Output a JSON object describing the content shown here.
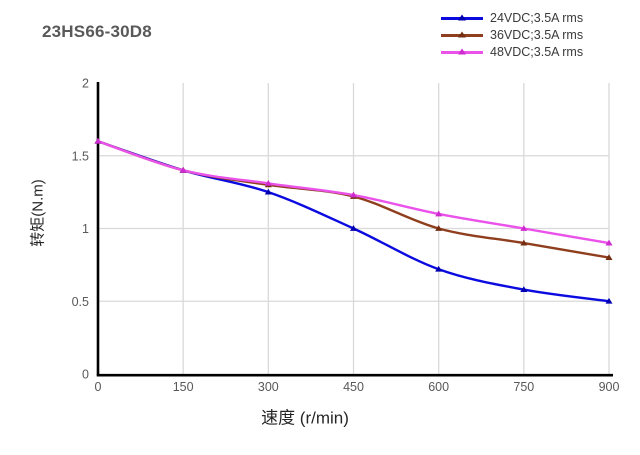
{
  "chart_data": {
    "type": "line",
    "title": "23HS66-30D8",
    "xlabel": "速度 (r/min)",
    "ylabel": "转矩(N.m)",
    "x": [
      0,
      150,
      300,
      450,
      600,
      750,
      900
    ],
    "xticks": [
      "0",
      "150",
      "300",
      "450",
      "600",
      "750",
      "900"
    ],
    "xtick_values": [
      0,
      150,
      300,
      450,
      600,
      750,
      900
    ],
    "yticks": [
      "0",
      "0.5",
      "1",
      "1.5",
      "2"
    ],
    "ytick_values": [
      0,
      0.5,
      1,
      1.5,
      2
    ],
    "xlim": [
      0,
      900
    ],
    "ylim": [
      0,
      2
    ],
    "grid": true,
    "legend_position": "top-right",
    "series": [
      {
        "name": "24VDC;3.5A rms",
        "color": "#0b0be0",
        "marker_color": "#0000ae",
        "values": [
          1.6,
          1.4,
          1.25,
          1.0,
          0.72,
          0.58,
          0.5
        ]
      },
      {
        "name": "36VDC;3.5A rms",
        "color": "#8f3f1e",
        "marker_color": "#742f12",
        "values": [
          1.6,
          1.4,
          1.3,
          1.22,
          1.0,
          0.9,
          0.8
        ]
      },
      {
        "name": "48VDC;3.5A rms",
        "color": "#ea52ea",
        "marker_color": "#cf2ccf",
        "values": [
          1.6,
          1.4,
          1.31,
          1.23,
          1.1,
          1.0,
          0.9
        ]
      }
    ],
    "colors": {
      "grid": "#d9d9d9",
      "axis": "#000000",
      "tick_label": "#595959",
      "title": "#595959",
      "axis_title": "#262626",
      "legend_text": "#3a3a3a",
      "background": "#ffffff"
    }
  }
}
